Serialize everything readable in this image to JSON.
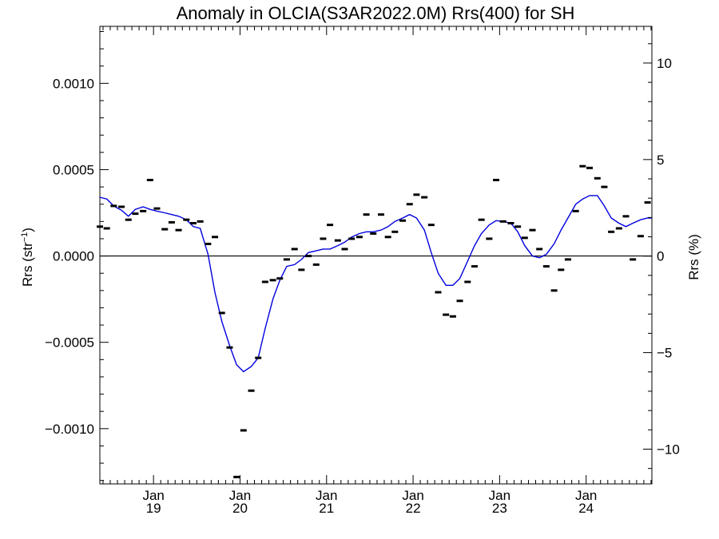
{
  "chart_data": {
    "type": "line",
    "title": "Anomaly in OLCIA(S3AR2022.0M) Rrs(400) for SH",
    "ylabel_left": {
      "base": "Rrs (str",
      "sup": "−1",
      "close": ")"
    },
    "ylabel_right": "Rrs (%)",
    "xlim": [
      2018.38,
      2024.76
    ],
    "ylim_left": [
      -0.00132,
      0.00133
    ],
    "ylim_right": [
      -11.8,
      11.9
    ],
    "x_ticks": [
      {
        "value": 2019.0,
        "month": "Jan",
        "year": "19"
      },
      {
        "value": 2020.0,
        "month": "Jan",
        "year": "20"
      },
      {
        "value": 2021.0,
        "month": "Jan",
        "year": "21"
      },
      {
        "value": 2022.0,
        "month": "Jan",
        "year": "22"
      },
      {
        "value": 2023.0,
        "month": "Jan",
        "year": "23"
      },
      {
        "value": 2024.0,
        "month": "Jan",
        "year": "24"
      }
    ],
    "y_ticks_left": [
      {
        "value": 0.001,
        "label": "0.0010"
      },
      {
        "value": 0.0005,
        "label": "0.0005"
      },
      {
        "value": 0.0,
        "label": "0.0000"
      },
      {
        "value": -0.0005,
        "label": "−0.0005"
      },
      {
        "value": -0.001,
        "label": "−0.0010"
      }
    ],
    "y_ticks_right": [
      {
        "value": 10,
        "label": "10"
      },
      {
        "value": 5,
        "label": "5"
      },
      {
        "value": 0,
        "label": "0"
      },
      {
        "value": -5,
        "label": "−5"
      },
      {
        "value": -10,
        "label": "−10"
      }
    ],
    "zero_line": 0.0,
    "series": [
      {
        "type": "points",
        "color": "#000000",
        "x": [
          2018.38,
          2018.46,
          2018.54,
          2018.63,
          2018.71,
          2018.79,
          2018.88,
          2018.96,
          2019.04,
          2019.13,
          2019.21,
          2019.29,
          2019.38,
          2019.46,
          2019.54,
          2019.63,
          2019.71,
          2019.79,
          2019.88,
          2019.96,
          2020.04,
          2020.13,
          2020.21,
          2020.29,
          2020.38,
          2020.46,
          2020.54,
          2020.63,
          2020.71,
          2020.79,
          2020.88,
          2020.96,
          2021.04,
          2021.13,
          2021.21,
          2021.29,
          2021.38,
          2021.46,
          2021.54,
          2021.63,
          2021.71,
          2021.79,
          2021.88,
          2021.96,
          2022.04,
          2022.13,
          2022.21,
          2022.29,
          2022.38,
          2022.46,
          2022.54,
          2022.63,
          2022.71,
          2022.79,
          2022.88,
          2022.96,
          2023.04,
          2023.13,
          2023.21,
          2023.29,
          2023.38,
          2023.46,
          2023.54,
          2023.63,
          2023.71,
          2023.79,
          2023.88,
          2023.96,
          2024.04,
          2024.13,
          2024.21,
          2024.29,
          2024.38,
          2024.46,
          2024.54,
          2024.63,
          2024.71
        ],
        "y": [
          0.00017,
          0.00016,
          0.00029,
          0.000285,
          0.00021,
          0.000245,
          0.00026,
          0.00044,
          0.000275,
          0.000155,
          0.000195,
          0.00015,
          0.00021,
          0.00019,
          0.0002,
          7e-05,
          0.00011,
          -0.00033,
          -0.00053,
          -0.00128,
          -0.00101,
          -0.00078,
          -0.00059,
          -0.00015,
          -0.00014,
          -0.00013,
          -2e-05,
          4e-05,
          -8e-05,
          0.0,
          -5e-05,
          0.0001,
          0.00018,
          9e-05,
          4e-05,
          0.0001,
          0.00011,
          0.00024,
          0.00013,
          0.00024,
          0.00011,
          0.00014,
          0.000205,
          0.0003,
          0.000355,
          0.00034,
          0.00018,
          -0.00021,
          -0.00034,
          -0.00035,
          -0.00026,
          -0.00015,
          -6e-05,
          0.00021,
          0.0001,
          0.00044,
          0.0002,
          0.00019,
          0.00017,
          0.000105,
          0.00015,
          4e-05,
          -6e-05,
          -0.0002,
          -8e-05,
          -2e-05,
          0.00026,
          0.00052,
          0.00051,
          0.00045,
          0.0004,
          0.00014,
          0.00016,
          0.00023,
          -2e-05,
          0.000115,
          0.00031
        ]
      },
      {
        "type": "line",
        "color": "#0000dd",
        "x": [
          2018.38,
          2018.46,
          2018.54,
          2018.63,
          2018.71,
          2018.79,
          2018.88,
          2018.96,
          2019.04,
          2019.13,
          2019.21,
          2019.29,
          2019.38,
          2019.46,
          2019.54,
          2019.63,
          2019.71,
          2019.79,
          2019.88,
          2019.96,
          2020.04,
          2020.13,
          2020.21,
          2020.29,
          2020.38,
          2020.46,
          2020.54,
          2020.63,
          2020.71,
          2020.79,
          2020.88,
          2020.96,
          2021.04,
          2021.13,
          2021.21,
          2021.29,
          2021.38,
          2021.46,
          2021.54,
          2021.63,
          2021.71,
          2021.79,
          2021.88,
          2021.96,
          2022.04,
          2022.13,
          2022.21,
          2022.29,
          2022.38,
          2022.46,
          2022.54,
          2022.63,
          2022.71,
          2022.79,
          2022.88,
          2022.96,
          2023.04,
          2023.13,
          2023.21,
          2023.29,
          2023.38,
          2023.46,
          2023.54,
          2023.63,
          2023.71,
          2023.79,
          2023.88,
          2023.96,
          2024.04,
          2024.13,
          2024.21,
          2024.29,
          2024.38,
          2024.46,
          2024.54,
          2024.63,
          2024.71,
          2024.76
        ],
        "y": [
          0.00034,
          0.00033,
          0.00029,
          0.000265,
          0.00023,
          0.00027,
          0.000285,
          0.00027,
          0.00026,
          0.00025,
          0.00024,
          0.00023,
          0.00021,
          0.00017,
          0.00016,
          1e-05,
          -0.00021,
          -0.00038,
          -0.00052,
          -0.00063,
          -0.00067,
          -0.00064,
          -0.00059,
          -0.00042,
          -0.00025,
          -0.00014,
          -6e-05,
          -5e-05,
          -2e-05,
          2e-05,
          3e-05,
          4e-05,
          4e-05,
          6e-05,
          8e-05,
          0.00011,
          0.00013,
          0.00014,
          0.00014,
          0.00015,
          0.00017,
          0.0002,
          0.00022,
          0.00024,
          0.00022,
          0.00015,
          2e-05,
          -0.0001,
          -0.00017,
          -0.00017,
          -0.00013,
          -3e-05,
          6e-05,
          0.00013,
          0.00018,
          0.000205,
          0.0002,
          0.00019,
          0.00014,
          6e-05,
          0.0,
          -1e-05,
          1e-05,
          7e-05,
          0.00015,
          0.00022,
          0.0003,
          0.00033,
          0.00035,
          0.00035,
          0.00029,
          0.00022,
          0.00019,
          0.00017,
          0.00019,
          0.00021,
          0.00022,
          0.00022
        ]
      }
    ]
  }
}
